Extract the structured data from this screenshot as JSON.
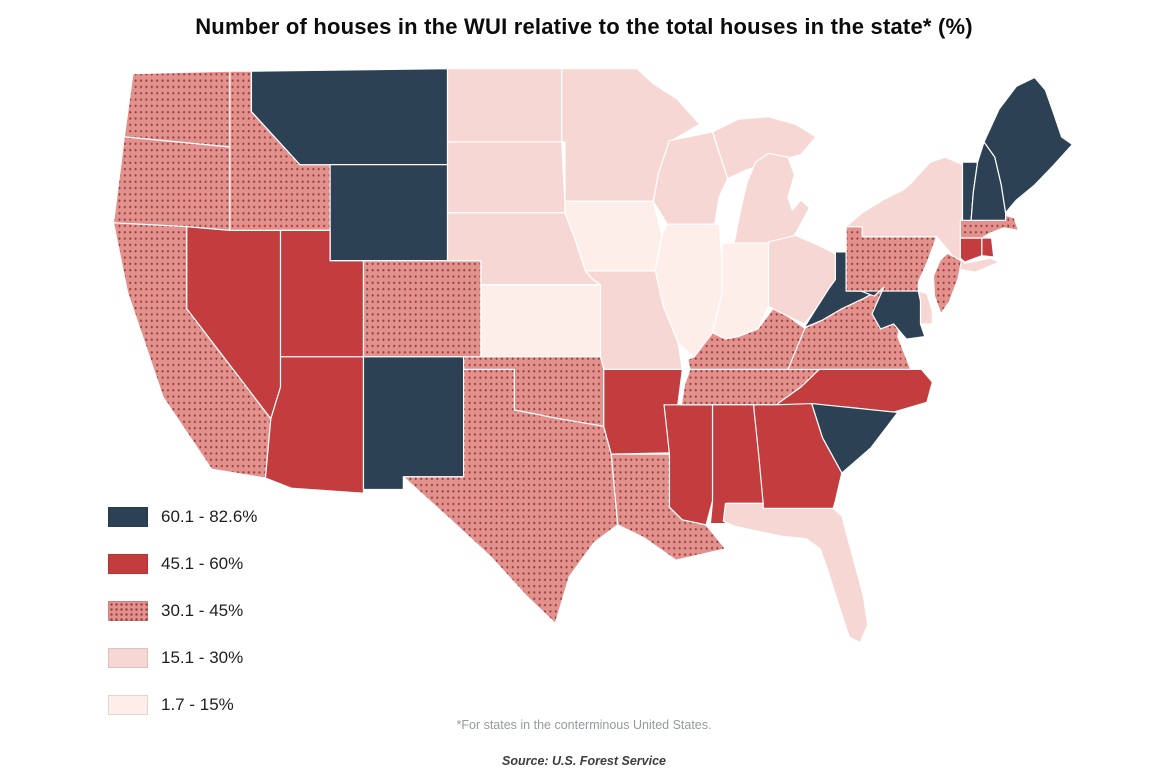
{
  "title": "Number of houses in the WUI relative to the total houses in the state* (%)",
  "footnote": "*For states in the conterminous United States.",
  "source": "Source: U.S. Forest Service",
  "chart_data": {
    "type": "choropleth",
    "region": "conterminous United States",
    "value_range": [
      1.7,
      82.6
    ],
    "classes": [
      {
        "label": "60.1 - 82.6%",
        "range": [
          60.1,
          82.6
        ],
        "color": "#2d4154",
        "pattern": "solid"
      },
      {
        "label": "45.1 - 60%",
        "range": [
          45.1,
          60
        ],
        "color": "#c33c3e",
        "pattern": "solid"
      },
      {
        "label": "30.1 - 45%",
        "range": [
          30.1,
          45
        ],
        "color": "#e2918d",
        "pattern": "dotted",
        "dot_color": "#953b3d"
      },
      {
        "label": "15.1 - 30%",
        "range": [
          15.1,
          30
        ],
        "color": "#f6d7d3",
        "pattern": "solid"
      },
      {
        "label": "1.7 - 15%",
        "range": [
          1.7,
          15
        ],
        "color": "#fdeeea",
        "pattern": "solid"
      }
    ],
    "states": {
      "WA": "30.1 - 45%",
      "OR": "30.1 - 45%",
      "CA": "30.1 - 45%",
      "ID": "30.1 - 45%",
      "NV": "45.1 - 60%",
      "MT": "60.1 - 82.6%",
      "WY": "60.1 - 82.6%",
      "UT": "45.1 - 60%",
      "CO": "30.1 - 45%",
      "AZ": "45.1 - 60%",
      "NM": "60.1 - 82.6%",
      "ND": "15.1 - 30%",
      "SD": "15.1 - 30%",
      "NE": "15.1 - 30%",
      "KS": "1.7 - 15%",
      "OK": "30.1 - 45%",
      "TX": "30.1 - 45%",
      "MN": "15.1 - 30%",
      "IA": "1.7 - 15%",
      "MO": "15.1 - 30%",
      "AR": "45.1 - 60%",
      "LA": "30.1 - 45%",
      "WI": "15.1 - 30%",
      "IL": "1.7 - 15%",
      "MS": "45.1 - 60%",
      "MI": "15.1 - 30%",
      "IN": "1.7 - 15%",
      "OH": "15.1 - 30%",
      "KY": "30.1 - 45%",
      "TN": "30.1 - 45%",
      "WV": "60.1 - 82.6%",
      "VA": "30.1 - 45%",
      "NC": "45.1 - 60%",
      "SC": "60.1 - 82.6%",
      "GA": "45.1 - 60%",
      "AL": "45.1 - 60%",
      "FL": "15.1 - 30%",
      "PA": "30.1 - 45%",
      "NY": "15.1 - 30%",
      "NJ": "30.1 - 45%",
      "DE": "15.1 - 30%",
      "MD": "60.1 - 82.6%",
      "CT": "45.1 - 60%",
      "RI": "45.1 - 60%",
      "MA": "30.1 - 45%",
      "VT": "60.1 - 82.6%",
      "NH": "60.1 - 82.6%",
      "ME": "60.1 - 82.6%"
    }
  }
}
